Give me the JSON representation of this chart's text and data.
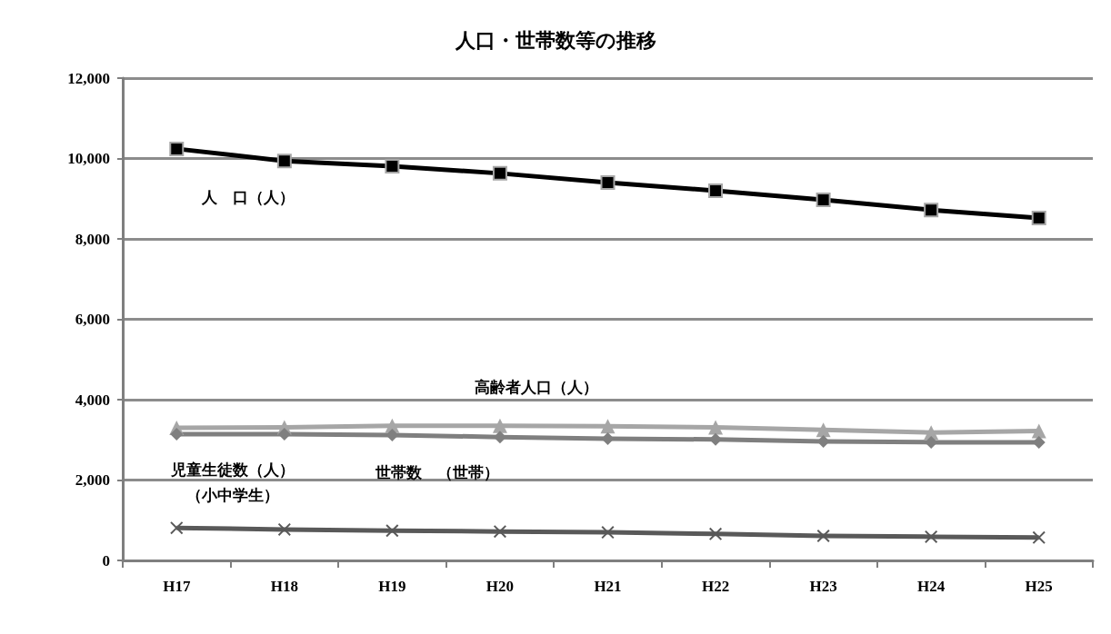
{
  "chart_data": {
    "type": "line",
    "title": "人口・世帯数等の推移",
    "categories": [
      "H17",
      "H18",
      "H19",
      "H20",
      "H21",
      "H22",
      "H23",
      "H24",
      "H25"
    ],
    "series": [
      {
        "name": "人　口（人）",
        "color": "#000000",
        "marker": "square",
        "values": [
          10240,
          9940,
          9810,
          9630,
          9400,
          9200,
          8970,
          8720,
          8520
        ]
      },
      {
        "name": "高齢者人口（人）",
        "color": "#a6a6a6",
        "marker": "triangle",
        "values": [
          3300,
          3310,
          3350,
          3350,
          3340,
          3310,
          3250,
          3180,
          3220
        ]
      },
      {
        "name": "世帯数　（世帯）",
        "color": "#7f7f7f",
        "marker": "diamond",
        "values": [
          3140,
          3140,
          3120,
          3070,
          3030,
          3010,
          2960,
          2940,
          2940
        ]
      },
      {
        "name": "児童生徒数（人）（小中学生）",
        "color": "#595959",
        "marker": "cross",
        "values": [
          810,
          770,
          740,
          720,
          700,
          660,
          610,
          590,
          570
        ]
      }
    ],
    "ylim": [
      0,
      12000
    ],
    "yticks": [
      0,
      {
        "value": 2000,
        "label": "2,000"
      },
      {
        "value": 4000,
        "label": "4,000"
      },
      {
        "value": 6000,
        "label": "6,000"
      },
      {
        "value": 8000,
        "label": "8,000"
      },
      {
        "value": 10000,
        "label": "10,000"
      },
      {
        "value": 12000,
        "label": "12,000"
      }
    ],
    "grid": "y",
    "legend": false,
    "line_style": "solid"
  }
}
